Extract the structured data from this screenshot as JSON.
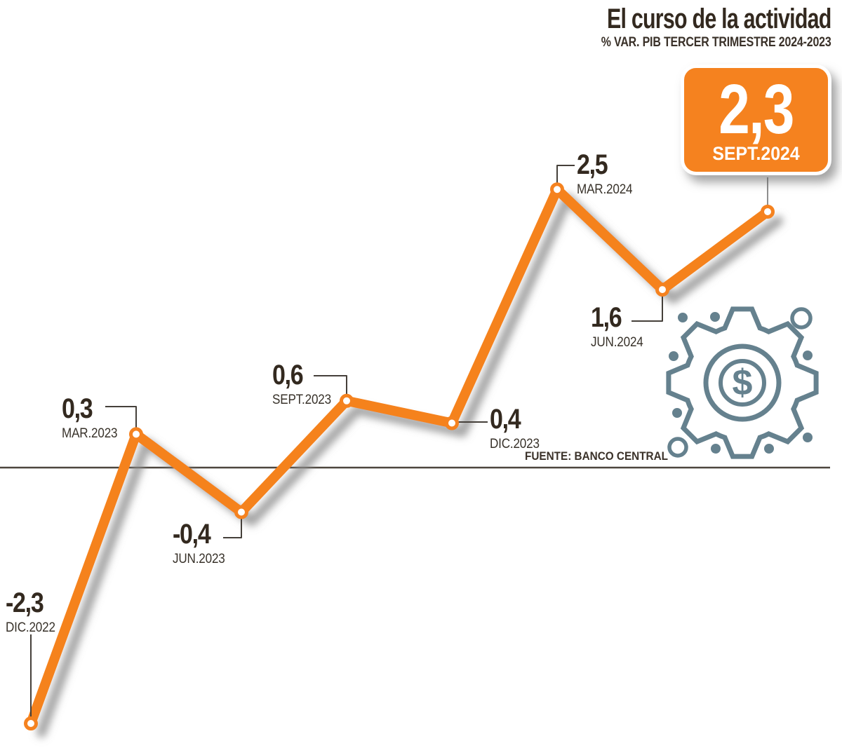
{
  "header": {
    "title": "El curso de la actividad",
    "subtitle": "% VAR. PIB TERCER TRIMESTRE 2024-2023"
  },
  "highlight": {
    "value": "2,3",
    "label": "SEPT.2024"
  },
  "source": "FUENTE: BANCO CENTRAL",
  "icons": {
    "decor": "gear-dollar-icon",
    "dollar_glyph": "$"
  },
  "colors": {
    "accent_orange": "#f5821f",
    "ink": "#33291f",
    "date_ink": "#38322a",
    "gear_slate": "#65818e",
    "baseline": "#4d463e",
    "callout": "#45403a",
    "shadow": "#8c8c8c"
  },
  "chart_data": {
    "type": "line",
    "title": "El curso de la actividad",
    "subtitle": "% VAR. PIB TERCER TRIMESTRE 2024-2023",
    "x": [
      "DIC.2022",
      "MAR.2023",
      "JUN.2023",
      "SEPT.2023",
      "DIC.2023",
      "MAR.2024",
      "JUN.2024",
      "SEPT.2024"
    ],
    "values": [
      -2.3,
      0.3,
      -0.4,
      0.6,
      0.4,
      2.5,
      1.6,
      2.3
    ],
    "value_labels": [
      "-2,3",
      "0,3",
      "-0,4",
      "0,6",
      "0,4",
      "2,5",
      "1,6",
      "2,3"
    ],
    "baseline": 0,
    "ylim": [
      -2.7,
      2.8
    ],
    "grid": false,
    "legend": false,
    "highlight_index": 7,
    "line_color": "#f5821f",
    "source": "FUENTE: BANCO CENTRAL"
  }
}
